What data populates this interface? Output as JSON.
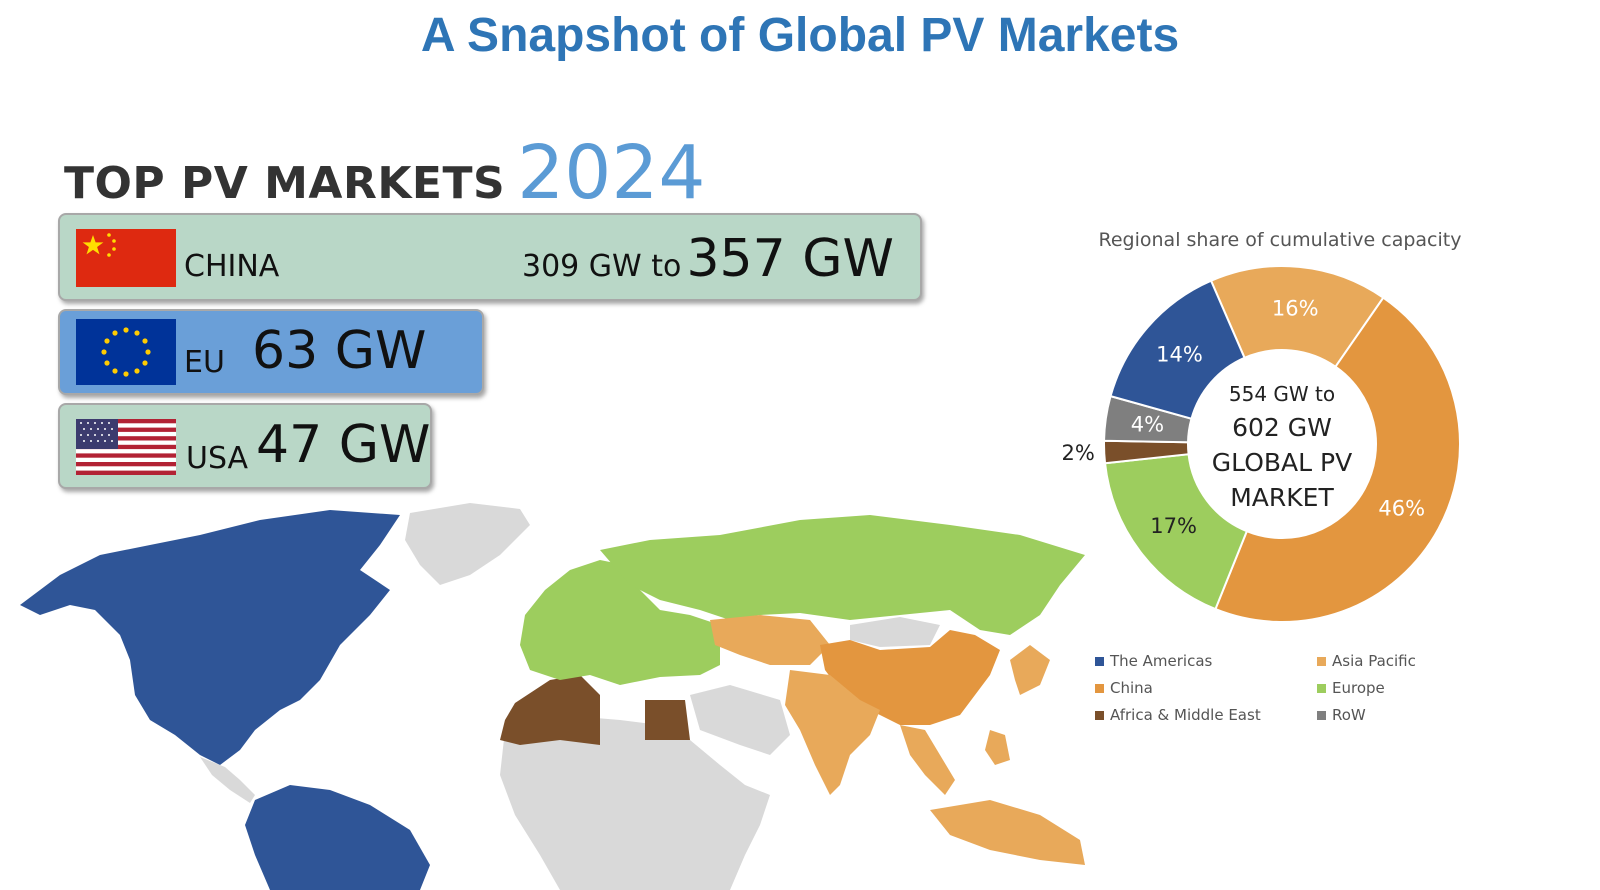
{
  "title": "A Snapshot of Global PV Markets",
  "top_markets": {
    "heading": "TOP PV MARKETS",
    "year": "2024",
    "rows": [
      {
        "country": "CHINA",
        "range_prefix": "309 GW to",
        "value": "357 GW",
        "color": "#b9d7c7"
      },
      {
        "country": "EU",
        "value": "63 GW",
        "color": "#6a9fd8"
      },
      {
        "country": "USA",
        "value": "47 GW",
        "color": "#b9d7c7"
      }
    ]
  },
  "chart_data": {
    "type": "pie",
    "title": "Regional share of cumulative capacity",
    "center_text": [
      "554 GW to",
      "602 GW",
      "GLOBAL PV",
      "MARKET"
    ],
    "series": [
      {
        "name": "Asia Pacific",
        "value": 16,
        "label": "16%",
        "color": "#e8a95a"
      },
      {
        "name": "China",
        "value": 46,
        "label": "46%",
        "color": "#e3963f"
      },
      {
        "name": "Europe",
        "value": 17,
        "label": "17%",
        "color": "#9dcd5e"
      },
      {
        "name": "Africa & Middle East",
        "value": 2,
        "label": "2%",
        "color": "#7a4f2a"
      },
      {
        "name": "RoW",
        "value": 4,
        "label": "4%",
        "color": "#7f7f7f"
      },
      {
        "name": "The Americas",
        "value": 14,
        "label": "14%",
        "color": "#2f5597"
      }
    ],
    "legend": [
      "The Americas",
      "Asia Pacific",
      "China",
      "Europe",
      "Africa & Middle East",
      "RoW"
    ],
    "legend_placement": "bottom"
  },
  "map_colors": {
    "americas": "#2f5597",
    "europe": "#9dcd5e",
    "china": "#e3963f",
    "asia_pacific": "#e8a95a",
    "africa_me": "#7a4f2a",
    "other": "#d9d9d9"
  }
}
